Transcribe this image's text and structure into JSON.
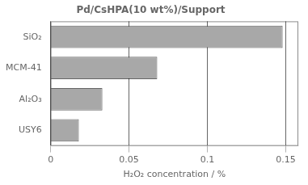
{
  "chart_data": {
    "type": "bar",
    "orientation": "horizontal",
    "title": "Pd/CsHPA(10 wt%)/Support",
    "categories": [
      "SiO₂",
      "MCM-41",
      "Al₂O₃",
      "USY6"
    ],
    "values": [
      0.148,
      0.068,
      0.033,
      0.018
    ],
    "color": "#a8a8a8",
    "xlabel": "H₂O₂ concentration / %",
    "xlim": [
      0,
      0.158
    ],
    "xticks": [
      0,
      0.05,
      0.1,
      0.15
    ],
    "grid": true
  }
}
